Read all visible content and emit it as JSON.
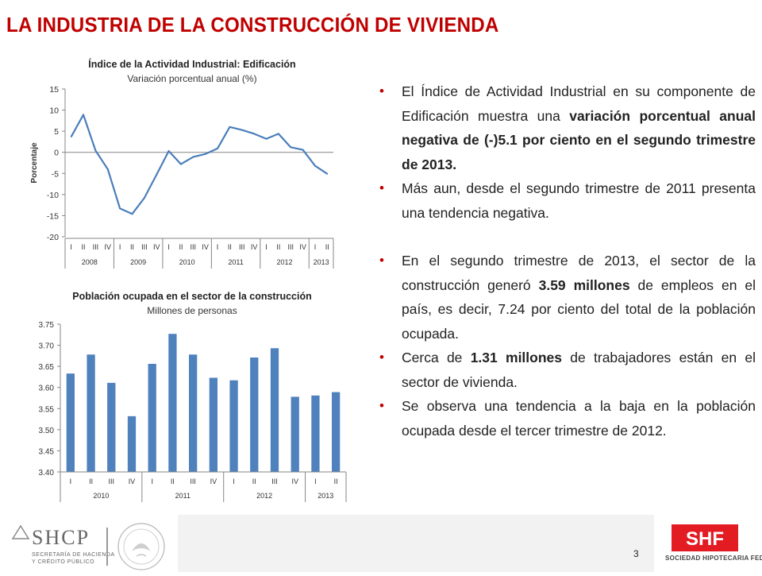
{
  "page": {
    "title": "LA INDUSTRIA DE LA CONSTRUCCIÓN DE VIVIENDA",
    "page_number": "3"
  },
  "chart1": {
    "title": "Índice de la Actividad Industrial: Edificación",
    "subtitle": "Variación porcentual anual (%)",
    "ylabel": "Porcentaje"
  },
  "chart2": {
    "title": "Población ocupada en el sector de la construcción",
    "subtitle": "Millones de personas"
  },
  "chart_data": [
    {
      "type": "line",
      "title": "Índice de la Actividad Industrial: Edificación",
      "subtitle": "Variación porcentual anual (%)",
      "ylabel": "Porcentaje",
      "ylim": [
        -20,
        15
      ],
      "yticks": [
        15,
        10,
        5,
        0,
        -5,
        -10,
        -15,
        -20
      ],
      "quarters": [
        "I",
        "II",
        "III",
        "IV",
        "I",
        "II",
        "III",
        "IV",
        "I",
        "II",
        "III",
        "IV",
        "I",
        "II",
        "III",
        "IV",
        "I",
        "II",
        "III",
        "IV",
        "I",
        "II"
      ],
      "years": [
        {
          "label": "2008",
          "span": 4
        },
        {
          "label": "2009",
          "span": 4
        },
        {
          "label": "2010",
          "span": 4
        },
        {
          "label": "2011",
          "span": 4
        },
        {
          "label": "2012",
          "span": 4
        },
        {
          "label": "2013",
          "span": 2
        }
      ],
      "values": [
        3.7,
        8.9,
        0.4,
        -4.0,
        -13.3,
        -14.6,
        -10.8,
        -5.3,
        0.3,
        -2.8,
        -1.1,
        -0.4,
        0.9,
        6.0,
        5.3,
        4.4,
        3.2,
        4.4,
        1.2,
        0.6,
        -3.2,
        -5.1
      ],
      "color": "#4a7ebb",
      "grid": false
    },
    {
      "type": "bar",
      "title": "Población ocupada en el sector de la construcción",
      "subtitle": "Millones de personas",
      "ylim": [
        3.4,
        3.75
      ],
      "yticks": [
        "3.75",
        "3.70",
        "3.65",
        "3.60",
        "3.55",
        "3.50",
        "3.45",
        "3.40"
      ],
      "quarters": [
        "I",
        "II",
        "III",
        "IV",
        "I",
        "II",
        "III",
        "IV",
        "I",
        "II",
        "III",
        "IV",
        "I",
        "II"
      ],
      "years": [
        {
          "label": "2010",
          "span": 4
        },
        {
          "label": "2011",
          "span": 4
        },
        {
          "label": "2012",
          "span": 4
        },
        {
          "label": "2013",
          "span": 2
        }
      ],
      "values": [
        3.633,
        3.678,
        3.611,
        3.532,
        3.656,
        3.727,
        3.678,
        3.623,
        3.617,
        3.671,
        3.693,
        3.578,
        3.581,
        3.589
      ],
      "color": "#4f81bd",
      "grid": false
    }
  ],
  "bullets": [
    {
      "parts": [
        {
          "t": "El Índice de Actividad Industrial en su componente de Edificación muestra una ",
          "b": false
        },
        {
          "t": "variación porcentual anual negativa de (-)5.1 por ciento en el segundo trimestre de 2013.",
          "b": true
        }
      ]
    },
    {
      "parts": [
        {
          "t": "Más aun, desde el segundo trimestre de 2011 presenta una tendencia negativa.",
          "b": false
        }
      ]
    },
    {
      "parts": [
        {
          "t": "En el segundo trimestre de 2013, el sector de la construcción generó ",
          "b": false
        },
        {
          "t": "3.59 millones",
          "b": true
        },
        {
          "t": " de empleos en el país, es decir, 7.24 por ciento del total de la población ocupada.",
          "b": false
        }
      ],
      "gap": true
    },
    {
      "parts": [
        {
          "t": "Cerca de ",
          "b": false
        },
        {
          "t": "1.31 millones",
          "b": true
        },
        {
          "t": " de trabajadores están en el sector de vivienda.",
          "b": false
        }
      ]
    },
    {
      "parts": [
        {
          "t": "Se observa una tendencia a la baja en la población ocupada desde el tercer trimestre de 2012.",
          "b": false
        }
      ]
    }
  ],
  "footer": {
    "shcp_logo": "SHCP",
    "shcp_line1": "SECRETARÍA DE HACIENDA",
    "shcp_line2": "Y CRÉDITO PÚBLICO",
    "shf_logo": "SHF",
    "shf_name": "SOCIEDAD HIPOTECARIA FEDERAL"
  },
  "colors": {
    "title_red": "#c00000",
    "bullet_red": "#c00000",
    "line_blue": "#4a7ebb",
    "bar_blue": "#4f81bd"
  }
}
